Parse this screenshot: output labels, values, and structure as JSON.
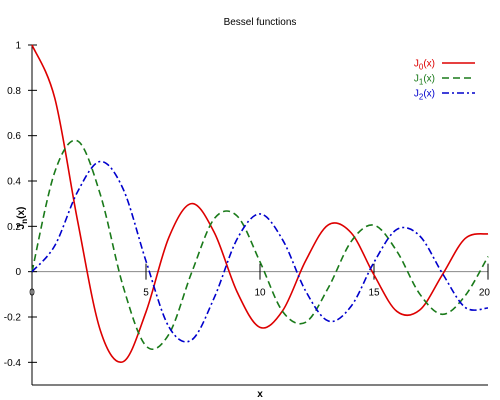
{
  "chart_data": {
    "type": "line",
    "title": "Bessel functions",
    "xlabel": "x",
    "ylabel": {
      "base": "J",
      "sub": "n",
      "suffix": "(x)"
    },
    "xlim": [
      0,
      20
    ],
    "ylim": [
      -0.5,
      1.0
    ],
    "x_ticks": [
      0,
      5,
      10,
      15,
      20
    ],
    "x_tick_labels": [
      "0",
      "5",
      "10",
      "15",
      "20"
    ],
    "y_ticks": [
      -0.4,
      -0.2,
      0,
      0.2,
      0.4,
      0.6,
      0.8,
      1
    ],
    "y_tick_labels": [
      "-0.4",
      "-0.2",
      "0",
      "0.2",
      "0.4",
      "0.6",
      "0.8",
      "1"
    ],
    "grid": false,
    "legend_position": "top-right",
    "x": [
      0,
      1,
      2,
      3,
      4,
      5,
      6,
      7,
      8,
      9,
      10,
      11,
      12,
      13,
      14,
      15,
      16,
      17,
      18,
      19,
      20
    ],
    "series": [
      {
        "name": {
          "base": "J",
          "sub": "0",
          "suffix": "(x)"
        },
        "order": 0,
        "color": "#dd0000",
        "dash": "solid",
        "values": [
          1.0,
          0.7652,
          0.2239,
          -0.2601,
          -0.3971,
          -0.1776,
          0.1506,
          0.3001,
          0.1717,
          -0.0903,
          -0.2459,
          -0.1712,
          0.0477,
          0.2069,
          0.1711,
          -0.0142,
          -0.1749,
          -0.1699,
          -0.0134,
          0.1466,
          0.167
        ]
      },
      {
        "name": {
          "base": "J",
          "sub": "1",
          "suffix": "(x)"
        },
        "order": 1,
        "color": "#1a7a1a",
        "dash": "dashed",
        "values": [
          0.0,
          0.4401,
          0.5767,
          0.3391,
          -0.066,
          -0.3276,
          -0.2767,
          -0.0047,
          0.2346,
          0.2453,
          0.0435,
          -0.1768,
          -0.2234,
          -0.0703,
          0.1334,
          0.2051,
          0.0904,
          -0.0977,
          -0.188,
          -0.1057,
          0.0668
        ]
      },
      {
        "name": {
          "base": "J",
          "sub": "2",
          "suffix": "(x)"
        },
        "order": 2,
        "color": "#0000cc",
        "dash": "dashdot",
        "values": [
          0.0,
          0.1149,
          0.3528,
          0.4861,
          0.3641,
          0.0466,
          -0.2429,
          -0.3014,
          -0.113,
          0.1448,
          0.2546,
          0.139,
          -0.0849,
          -0.2177,
          -0.152,
          0.0416,
          0.1862,
          0.1584,
          -0.0075,
          -0.1578,
          -0.1603
        ]
      }
    ]
  }
}
